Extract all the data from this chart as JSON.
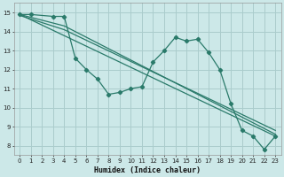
{
  "xlabel": "Humidex (Indice chaleur)",
  "bg_color": "#cce8e8",
  "grid_color": "#aacccc",
  "line_color": "#2a7a6a",
  "xlim": [
    -0.5,
    23.5
  ],
  "ylim": [
    7.5,
    15.5
  ],
  "xticks": [
    0,
    1,
    2,
    3,
    4,
    5,
    6,
    7,
    8,
    9,
    10,
    11,
    12,
    13,
    14,
    15,
    16,
    17,
    18,
    19,
    20,
    21,
    22,
    23
  ],
  "yticks": [
    8,
    9,
    10,
    11,
    12,
    13,
    14,
    15
  ],
  "main_x": [
    0,
    1,
    3,
    4,
    5,
    6,
    7,
    8,
    9,
    10,
    11,
    12,
    13,
    14,
    15,
    16,
    17,
    18,
    19,
    20,
    21,
    22,
    23
  ],
  "main_y": [
    14.9,
    14.9,
    14.8,
    14.8,
    12.6,
    12.0,
    11.5,
    10.7,
    10.8,
    11.0,
    11.1,
    12.4,
    13.0,
    13.7,
    13.5,
    13.6,
    12.9,
    12.0,
    10.2,
    8.8,
    8.5,
    7.8,
    8.5
  ],
  "line1_x": [
    0,
    23
  ],
  "line1_y": [
    14.9,
    8.5
  ],
  "line2_x": [
    0,
    4,
    23
  ],
  "line2_y": [
    14.9,
    14.3,
    8.6
  ],
  "line3_x": [
    0,
    4,
    23
  ],
  "line3_y": [
    14.85,
    14.1,
    8.8
  ]
}
